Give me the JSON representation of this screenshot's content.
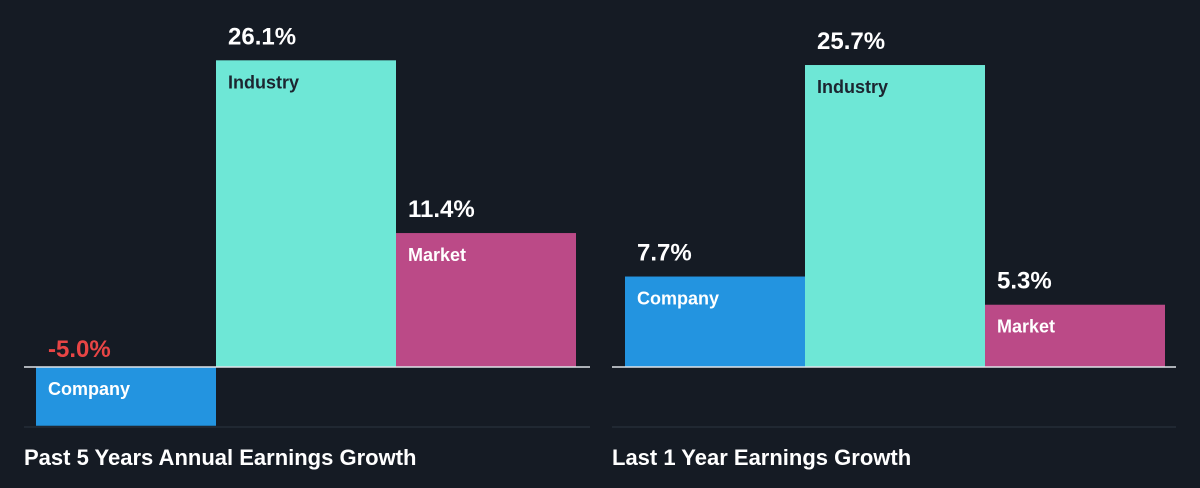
{
  "chart_data": [
    {
      "type": "bar",
      "title": "Past 5 Years Annual Earnings Growth",
      "categories": [
        "Company",
        "Industry",
        "Market"
      ],
      "values": [
        -5.0,
        26.1,
        11.4
      ],
      "value_labels": [
        "-5.0%",
        "26.1%",
        "11.4%"
      ],
      "unit": "%",
      "colors": [
        "#2394e0",
        "#6ee7d6",
        "#bb4a87"
      ],
      "label_colors": [
        "#ffffff",
        "#1c2530",
        "#ffffff"
      ],
      "value_label_colors": [
        "#e84545",
        "#ffffff",
        "#ffffff"
      ]
    },
    {
      "type": "bar",
      "title": "Last 1 Year Earnings Growth",
      "categories": [
        "Company",
        "Industry",
        "Market"
      ],
      "values": [
        7.7,
        25.7,
        5.3
      ],
      "value_labels": [
        "7.7%",
        "25.7%",
        "5.3%"
      ],
      "unit": "%",
      "colors": [
        "#2394e0",
        "#6ee7d6",
        "#bb4a87"
      ],
      "label_colors": [
        "#ffffff",
        "#1c2530",
        "#ffffff"
      ],
      "value_label_colors": [
        "#ffffff",
        "#ffffff",
        "#ffffff"
      ]
    }
  ],
  "theme": {
    "background": "#151b24",
    "axis_color": "#dfe3e8",
    "divider_color": "#2c3440"
  }
}
